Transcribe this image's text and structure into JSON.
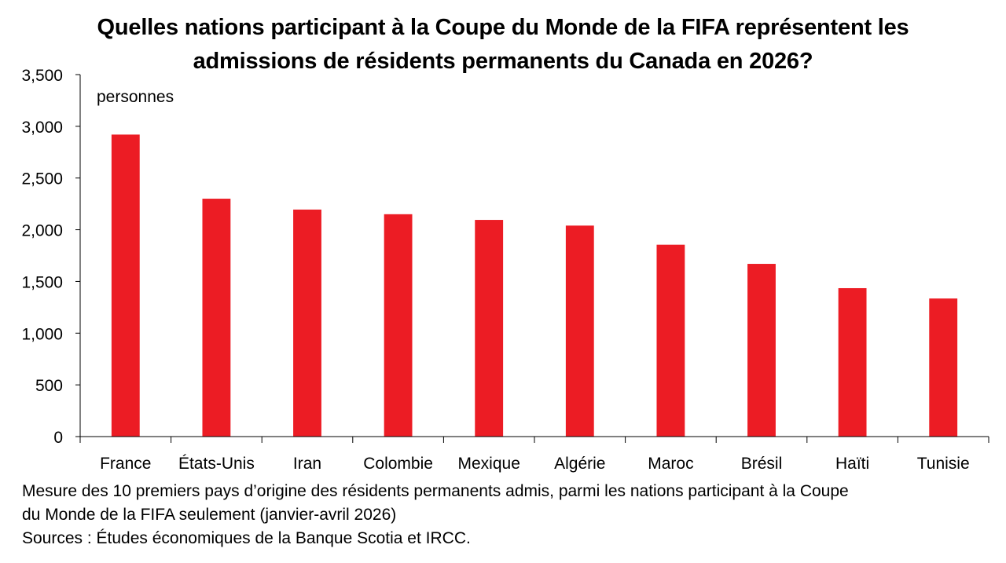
{
  "chart_data": {
    "type": "bar",
    "title_line1": "Quelles nations participant à la Coupe du Monde de la FIFA représentent les",
    "title_line2": "admissions de résidents permanents du Canada en 2026?",
    "unit_label": "personnes",
    "categories": [
      "France",
      "États-Unis",
      "Iran",
      "Colombie",
      "Mexique",
      "Algérie",
      "Maroc",
      "Brésil",
      "Haïti",
      "Tunisie"
    ],
    "values": [
      2920,
      2300,
      2195,
      2150,
      2095,
      2040,
      1855,
      1670,
      1435,
      1335
    ],
    "y_ticks": [
      "0",
      "500",
      "1,000",
      "1,500",
      "2,000",
      "2,500",
      "3,000",
      "3,500"
    ],
    "ylim": [
      0,
      3500
    ],
    "grid": false,
    "legend": "none",
    "bar_color": "#ec1c24"
  },
  "footnote": {
    "line1": "Mesure des 10 premiers pays d’origine des résidents permanents admis, parmi les nations participant à la Coupe",
    "line2": "du Monde de la FIFA seulement (janvier-avril 2026)",
    "line3": "Sources : Études économiques de la Banque Scotia et IRCC."
  }
}
